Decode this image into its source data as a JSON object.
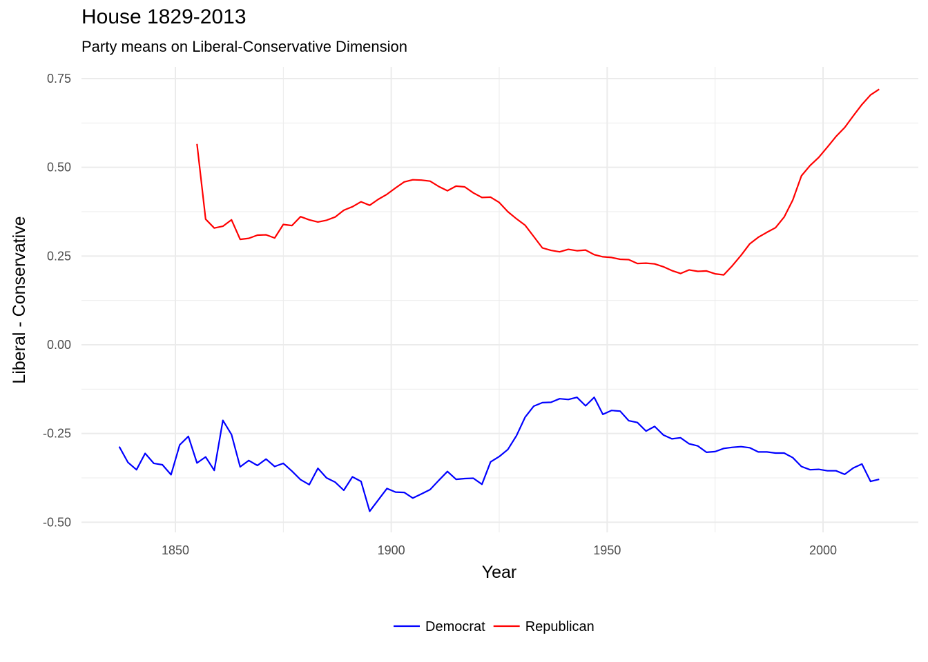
{
  "title": "House 1829-2013",
  "subtitle": "Party means on Liberal-Conservative Dimension",
  "chart_data": {
    "type": "line",
    "xlabel": "Year",
    "ylabel": "Liberal - Conservative",
    "xlim": [
      1830,
      2021
    ],
    "ylim": [
      -0.52,
      0.77
    ],
    "x_ticks": [
      1850,
      1900,
      1950,
      2000
    ],
    "x_tick_labels": [
      "1850",
      "1900",
      "1950",
      "2000"
    ],
    "y_ticks": [
      -0.5,
      -0.25,
      0.0,
      0.25,
      0.5,
      0.75
    ],
    "y_tick_labels": [
      "-0.50",
      "-0.25",
      "0.00",
      "0.25",
      "0.50",
      "0.75"
    ],
    "grid": true,
    "legend_position": "bottom",
    "series": [
      {
        "name": "Democrat",
        "color": "#0000FF",
        "x": [
          1837,
          1839,
          1841,
          1843,
          1845,
          1847,
          1849,
          1851,
          1853,
          1855,
          1857,
          1859,
          1861,
          1863,
          1865,
          1867,
          1869,
          1871,
          1873,
          1875,
          1877,
          1879,
          1881,
          1883,
          1885,
          1887,
          1889,
          1891,
          1893,
          1895,
          1897,
          1899,
          1901,
          1903,
          1905,
          1907,
          1909,
          1911,
          1913,
          1915,
          1917,
          1919,
          1921,
          1923,
          1925,
          1927,
          1929,
          1931,
          1933,
          1935,
          1937,
          1939,
          1941,
          1943,
          1945,
          1947,
          1949,
          1951,
          1953,
          1955,
          1957,
          1959,
          1961,
          1963,
          1965,
          1967,
          1969,
          1971,
          1973,
          1975,
          1977,
          1979,
          1981,
          1983,
          1985,
          1987,
          1989,
          1991,
          1993,
          1995,
          1997,
          1999,
          2001,
          2003,
          2005,
          2007,
          2009,
          2011,
          2013
        ],
        "y": [
          -0.287,
          -0.331,
          -0.352,
          -0.306,
          -0.334,
          -0.338,
          -0.366,
          -0.282,
          -0.258,
          -0.333,
          -0.316,
          -0.354,
          -0.213,
          -0.253,
          -0.344,
          -0.326,
          -0.34,
          -0.322,
          -0.343,
          -0.334,
          -0.356,
          -0.38,
          -0.394,
          -0.348,
          -0.375,
          -0.387,
          -0.41,
          -0.372,
          -0.385,
          -0.469,
          -0.437,
          -0.405,
          -0.415,
          -0.416,
          -0.432,
          -0.42,
          -0.408,
          -0.382,
          -0.357,
          -0.379,
          -0.377,
          -0.376,
          -0.393,
          -0.33,
          -0.315,
          -0.295,
          -0.256,
          -0.204,
          -0.173,
          -0.163,
          -0.162,
          -0.152,
          -0.154,
          -0.148,
          -0.172,
          -0.148,
          -0.196,
          -0.185,
          -0.187,
          -0.214,
          -0.219,
          -0.243,
          -0.23,
          -0.254,
          -0.265,
          -0.262,
          -0.279,
          -0.285,
          -0.303,
          -0.301,
          -0.292,
          -0.289,
          -0.287,
          -0.29,
          -0.302,
          -0.302,
          -0.305,
          -0.305,
          -0.318,
          -0.343,
          -0.352,
          -0.351,
          -0.355,
          -0.355,
          -0.365,
          -0.347,
          -0.336,
          -0.385,
          -0.379
        ]
      },
      {
        "name": "Republican",
        "color": "#FF0000",
        "x": [
          1855,
          1857,
          1859,
          1861,
          1863,
          1865,
          1867,
          1869,
          1871,
          1873,
          1875,
          1877,
          1879,
          1881,
          1883,
          1885,
          1887,
          1889,
          1891,
          1893,
          1895,
          1897,
          1899,
          1901,
          1903,
          1905,
          1907,
          1909,
          1911,
          1913,
          1915,
          1917,
          1919,
          1921,
          1923,
          1925,
          1927,
          1929,
          1931,
          1933,
          1935,
          1937,
          1939,
          1941,
          1943,
          1945,
          1947,
          1949,
          1951,
          1953,
          1955,
          1957,
          1959,
          1961,
          1963,
          1965,
          1967,
          1969,
          1971,
          1973,
          1975,
          1977,
          1979,
          1981,
          1983,
          1985,
          1987,
          1989,
          1991,
          1993,
          1995,
          1997,
          1999,
          2001,
          2003,
          2005,
          2007,
          2009,
          2011,
          2013
        ],
        "y": [
          0.566,
          0.354,
          0.329,
          0.334,
          0.352,
          0.297,
          0.3,
          0.309,
          0.31,
          0.301,
          0.339,
          0.336,
          0.361,
          0.352,
          0.346,
          0.351,
          0.36,
          0.379,
          0.389,
          0.403,
          0.393,
          0.41,
          0.424,
          0.442,
          0.459,
          0.465,
          0.464,
          0.461,
          0.446,
          0.434,
          0.447,
          0.445,
          0.428,
          0.415,
          0.416,
          0.401,
          0.375,
          0.355,
          0.337,
          0.305,
          0.273,
          0.266,
          0.262,
          0.269,
          0.265,
          0.267,
          0.254,
          0.248,
          0.246,
          0.241,
          0.24,
          0.229,
          0.23,
          0.228,
          0.22,
          0.209,
          0.201,
          0.211,
          0.207,
          0.208,
          0.2,
          0.197,
          0.223,
          0.252,
          0.284,
          0.303,
          0.317,
          0.33,
          0.36,
          0.408,
          0.476,
          0.505,
          0.528,
          0.557,
          0.587,
          0.612,
          0.645,
          0.677,
          0.704,
          0.72
        ]
      }
    ]
  }
}
